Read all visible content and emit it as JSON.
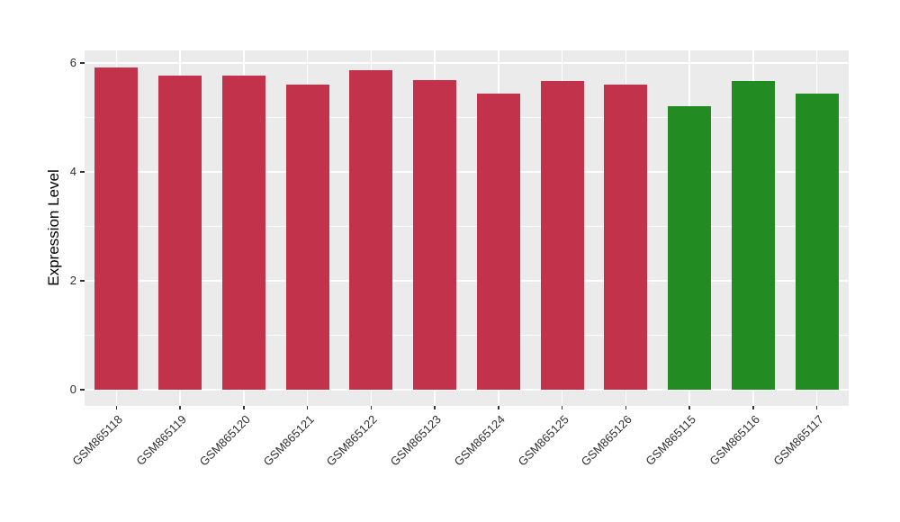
{
  "chart_data": {
    "type": "bar",
    "title": "",
    "xlabel": "",
    "ylabel": "Expression Level",
    "categories": [
      "GSM865118",
      "GSM865119",
      "GSM865120",
      "GSM865121",
      "GSM865122",
      "GSM865123",
      "GSM865124",
      "GSM865125",
      "GSM865126",
      "GSM865115",
      "GSM865116",
      "GSM865117"
    ],
    "values": [
      5.92,
      5.77,
      5.77,
      5.6,
      5.86,
      5.68,
      5.43,
      5.66,
      5.6,
      5.2,
      5.66,
      5.43
    ],
    "bar_colors": [
      "#C2324B",
      "#C2324B",
      "#C2324B",
      "#C2324B",
      "#C2324B",
      "#C2324B",
      "#C2324B",
      "#C2324B",
      "#C2324B",
      "#228B22",
      "#228B22",
      "#228B22"
    ],
    "yticks": [
      0,
      2,
      4,
      6
    ],
    "minor_yticks": [
      1,
      3,
      5
    ],
    "ylim": [
      0,
      6.23
    ],
    "panel_ylim": [
      -0.3,
      6.23
    ],
    "grid": true,
    "legend": false,
    "colors": {
      "panel_bg": "#EBEBEB",
      "grid": "#FFFFFF",
      "tick": "#333333",
      "axis_text": "#303030",
      "axis_title": "#000000",
      "red_group": "#C2324B",
      "green_group": "#228B22"
    }
  }
}
